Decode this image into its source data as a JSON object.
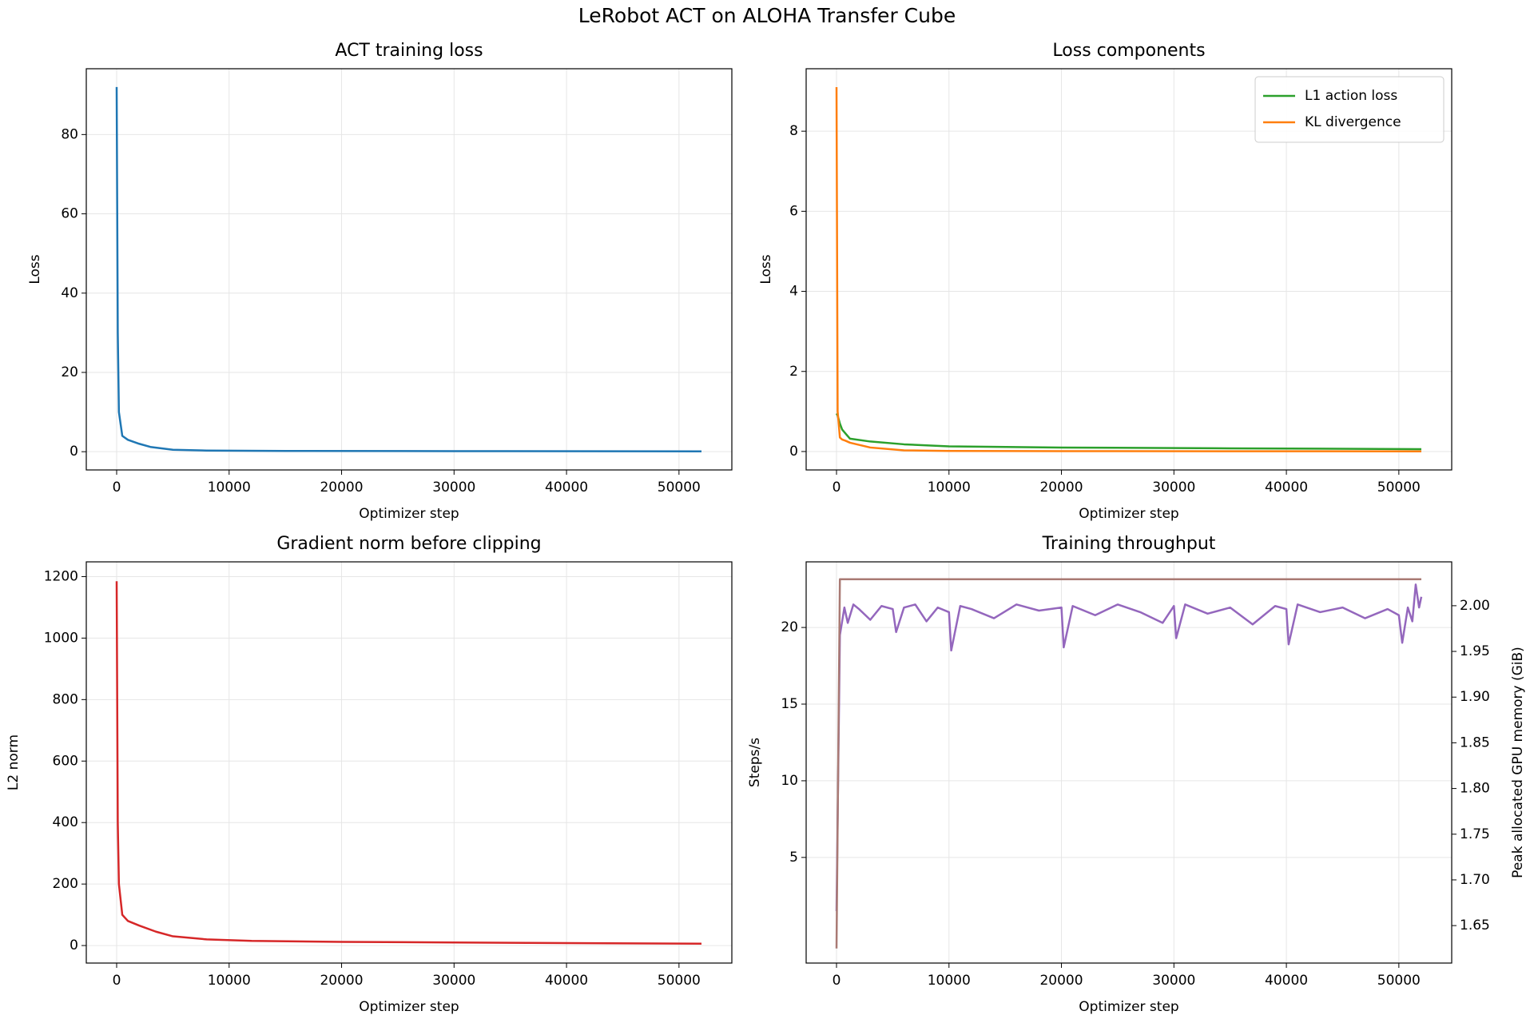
{
  "title": "LeRobot ACT on ALOHA Transfer Cube",
  "chart_data": [
    {
      "type": "line",
      "title": "ACT training loss",
      "xlabel": "Optimizer step",
      "ylabel": "Loss",
      "x": [
        0,
        100,
        200,
        500,
        1000,
        2000,
        3000,
        5000,
        8000,
        15000,
        30000,
        52000
      ],
      "series": [
        {
          "color": "#1f77b4",
          "values": [
            92,
            30,
            10,
            4,
            3,
            2,
            1.2,
            0.5,
            0.3,
            0.2,
            0.15,
            0.1
          ]
        }
      ],
      "xlim": [
        -2700,
        54700
      ],
      "ylim": [
        -4.6,
        96.6
      ],
      "xticks": [
        0,
        10000,
        20000,
        30000,
        40000,
        50000
      ],
      "yticks": [
        0,
        20,
        40,
        60,
        80
      ],
      "grid": true
    },
    {
      "type": "line",
      "title": "Loss components",
      "xlabel": "Optimizer step",
      "ylabel": "Loss",
      "x": [
        0,
        100,
        300,
        500,
        800,
        1200,
        3000,
        6000,
        10000,
        20000,
        35000,
        52000
      ],
      "series": [
        {
          "name": "L1 action loss",
          "color": "#2ca02c",
          "values": [
            0.95,
            0.9,
            0.7,
            0.55,
            0.45,
            0.32,
            0.25,
            0.18,
            0.13,
            0.1,
            0.08,
            0.06
          ]
        },
        {
          "name": "KL divergence",
          "color": "#ff7f0e",
          "values": [
            9.1,
            1.0,
            0.35,
            0.3,
            0.27,
            0.22,
            0.1,
            0.03,
            0.015,
            0.01,
            0.007,
            0.005
          ]
        }
      ],
      "xlim": [
        -2700,
        54700
      ],
      "ylim": [
        -0.46,
        9.56
      ],
      "xticks": [
        0,
        10000,
        20000,
        30000,
        40000,
        50000
      ],
      "yticks": [
        0,
        2,
        4,
        6,
        8
      ],
      "grid": true,
      "legend": "upper right"
    },
    {
      "type": "line",
      "title": "Gradient norm before clipping",
      "xlabel": "Optimizer step",
      "ylabel": "L2 norm",
      "x": [
        0,
        100,
        200,
        500,
        1000,
        2000,
        3500,
        5000,
        8000,
        12000,
        20000,
        30000,
        40000,
        52000
      ],
      "series": [
        {
          "color": "#d62728",
          "values": [
            1185,
            400,
            200,
            100,
            80,
            65,
            45,
            30,
            20,
            15,
            12,
            10,
            8,
            6
          ]
        }
      ],
      "xlim": [
        -2700,
        54700
      ],
      "ylim": [
        -57,
        1248
      ],
      "xticks": [
        0,
        10000,
        20000,
        30000,
        40000,
        50000
      ],
      "yticks": [
        0,
        200,
        400,
        600,
        800,
        1000,
        1200
      ],
      "grid": true
    },
    {
      "type": "line",
      "title": "Training throughput",
      "xlabel": "Optimizer step",
      "ylabel": "Steps/s",
      "y2label": "Peak allocated GPU memory (GiB)",
      "x": [
        0,
        300,
        700,
        1000,
        1500,
        2000,
        3000,
        4000,
        5000,
        5300,
        6000,
        7000,
        8000,
        9000,
        10000,
        10200,
        11000,
        12000,
        14000,
        16000,
        18000,
        20000,
        20200,
        21000,
        23000,
        25000,
        27000,
        29000,
        30000,
        30200,
        31000,
        33000,
        35000,
        37000,
        39000,
        40000,
        40200,
        41000,
        43000,
        45000,
        47000,
        49000,
        50000,
        50300,
        50800,
        51200,
        51500,
        51800,
        52000
      ],
      "series": [
        {
          "color": "#9467bd",
          "values": [
            1.5,
            19.5,
            21.3,
            20.3,
            21.5,
            21.2,
            20.5,
            21.4,
            21.2,
            19.7,
            21.3,
            21.5,
            20.4,
            21.3,
            21.0,
            18.5,
            21.4,
            21.2,
            20.6,
            21.5,
            21.1,
            21.3,
            18.7,
            21.4,
            20.8,
            21.5,
            21.0,
            20.3,
            21.4,
            19.3,
            21.5,
            20.9,
            21.3,
            20.2,
            21.4,
            21.2,
            18.9,
            21.5,
            21.0,
            21.3,
            20.6,
            21.2,
            20.8,
            19.0,
            21.3,
            20.4,
            22.8,
            21.3,
            22.0
          ]
        },
        {
          "color": "#a97a74",
          "axis": "y2",
          "values": [
            1.625,
            2.029,
            2.029,
            2.029,
            2.029,
            2.029,
            2.029,
            2.029,
            2.029,
            2.029,
            2.029,
            2.029,
            2.029,
            2.029,
            2.029,
            2.029,
            2.029,
            2.029,
            2.029,
            2.029,
            2.029,
            2.029,
            2.029,
            2.029,
            2.029,
            2.029,
            2.029,
            2.029,
            2.029,
            2.029,
            2.029,
            2.029,
            2.029,
            2.029,
            2.029,
            2.029,
            2.029,
            2.029,
            2.029,
            2.029,
            2.029,
            2.029,
            2.029,
            2.029,
            2.029,
            2.029,
            2.029,
            2.029,
            2.029
          ]
        }
      ],
      "xlim": [
        -2700,
        54700
      ],
      "ylim": [
        -1.89,
        24.28
      ],
      "y2lim": [
        1.609,
        2.048
      ],
      "xticks": [
        0,
        10000,
        20000,
        30000,
        40000,
        50000
      ],
      "yticks": [
        5,
        10,
        15,
        20
      ],
      "y2ticks": [
        1.65,
        {
          "value": 1.7,
          "label": "1.70"
        },
        1.75,
        {
          "value": 1.8,
          "label": "1.80"
        },
        1.85,
        {
          "value": 1.9,
          "label": "1.90"
        },
        1.95,
        {
          "value": 2,
          "label": "2.00"
        }
      ],
      "grid": true
    }
  ]
}
